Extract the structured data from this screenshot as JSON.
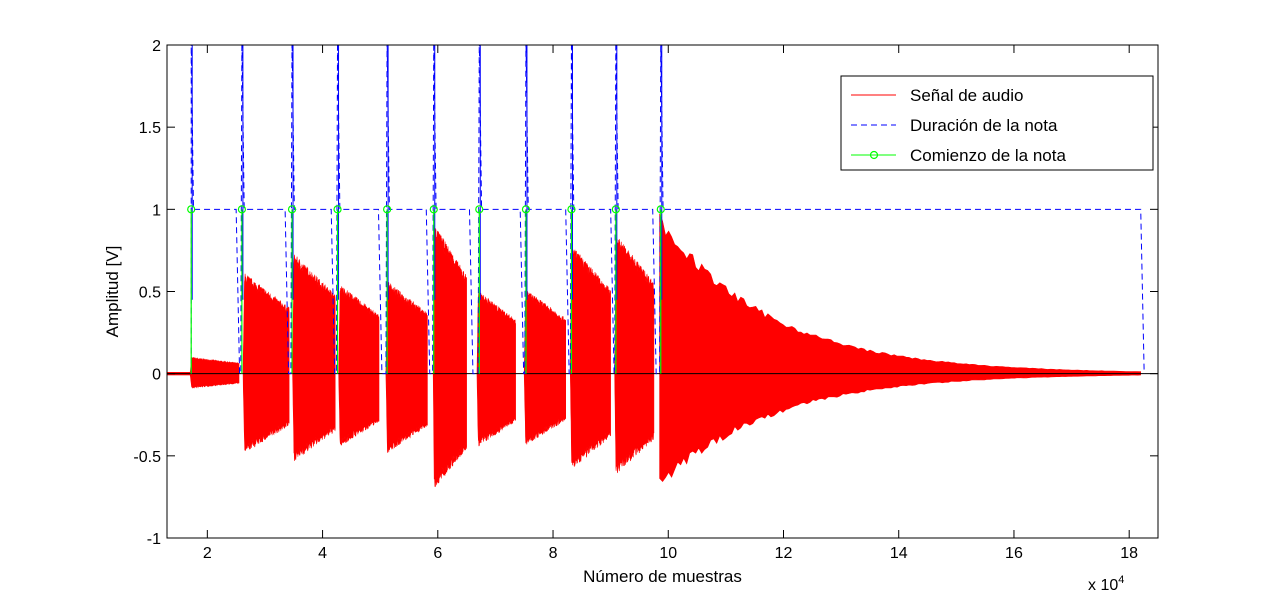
{
  "chart_data": {
    "type": "line",
    "xlabel": "Número de muestras",
    "ylabel": "Amplitud [V]",
    "x_multiplier": "x 10",
    "x_multiplier_exponent": "4",
    "xlim": [
      1.3,
      18.5
    ],
    "ylim": [
      -1,
      2
    ],
    "x_ticks": [
      2,
      4,
      6,
      8,
      10,
      12,
      14,
      16,
      18
    ],
    "y_ticks": [
      -1,
      -0.5,
      0,
      0.5,
      1,
      1.5,
      2
    ],
    "grid": false,
    "legend_position": "top-right",
    "legend": [
      {
        "label": "Señal de audio",
        "color": "#ff0000",
        "style": "solid"
      },
      {
        "label": "Duración de la nota",
        "color": "#0000ff",
        "style": "dashed"
      },
      {
        "label": "Comienzo de la nota",
        "color": "#00ff00",
        "style": "solid-circle-marker"
      }
    ],
    "series": [
      {
        "name": "Señal de audio",
        "color": "#ff0000",
        "note_segments": [
          {
            "start": 1.7,
            "end": 2.55,
            "peak_pos": 0.1,
            "peak_neg": -0.09
          },
          {
            "start": 2.62,
            "end": 3.42,
            "peak_pos": 0.62,
            "peak_neg": -0.49
          },
          {
            "start": 3.48,
            "end": 4.22,
            "peak_pos": 0.74,
            "peak_neg": -0.54
          },
          {
            "start": 4.28,
            "end": 4.98,
            "peak_pos": 0.55,
            "peak_neg": -0.45
          },
          {
            "start": 5.1,
            "end": 5.82,
            "peak_pos": 0.57,
            "peak_neg": -0.49
          },
          {
            "start": 5.92,
            "end": 6.5,
            "peak_pos": 0.92,
            "peak_neg": -0.71
          },
          {
            "start": 6.68,
            "end": 7.35,
            "peak_pos": 0.51,
            "peak_neg": -0.45
          },
          {
            "start": 7.5,
            "end": 8.22,
            "peak_pos": 0.52,
            "peak_neg": -0.44
          },
          {
            "start": 8.3,
            "end": 9.0,
            "peak_pos": 0.79,
            "peak_neg": -0.59
          },
          {
            "start": 9.07,
            "end": 9.75,
            "peak_pos": 0.86,
            "peak_neg": -0.62
          },
          {
            "start": 9.85,
            "end": 18.2,
            "peak_pos": 0.98,
            "peak_neg": -0.72
          }
        ]
      },
      {
        "name": "Duración de la nota",
        "color": "#0000ff",
        "style": "dashed",
        "spikes": [
          1.72,
          2.6,
          3.47,
          4.26,
          5.12,
          5.93,
          6.72,
          7.53,
          8.32,
          9.09,
          9.87
        ],
        "dips": [
          2.5,
          3.35,
          4.15,
          4.97,
          5.8,
          6.55,
          7.43,
          8.22,
          9.0,
          9.73
        ],
        "end": 18.2,
        "level": 1
      },
      {
        "name": "Comienzo de la nota",
        "color": "#00ff00",
        "onsets": [
          1.72,
          2.6,
          3.47,
          4.26,
          5.12,
          5.93,
          6.72,
          7.53,
          8.32,
          9.09,
          9.87
        ],
        "level": 1
      }
    ]
  }
}
